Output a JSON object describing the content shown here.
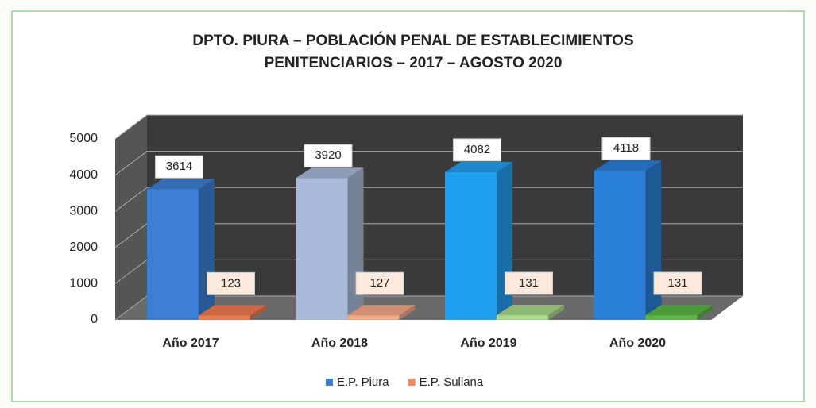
{
  "chart_data": {
    "type": "bar3d",
    "title": [
      "DPTO. PIURA – POBLACIÓN PENAL DE ESTABLECIMIENTOS",
      "PENITENCIARIOS – 2017 – AGOSTO 2020"
    ],
    "categories": [
      "Año 2017",
      "Año 2018",
      "Año 2019",
      "Año 2020"
    ],
    "series": [
      {
        "name": "E.P. Piura",
        "color": "#3a7fd5",
        "colors": [
          "#3a7fd5",
          "#a9b9d9",
          "#1fa0ee",
          "#2b7fd8"
        ],
        "values": [
          3614,
          3920,
          4082,
          4118
        ]
      },
      {
        "name": "E.P. Sullana",
        "color": "#f08a62",
        "colors": [
          "#ee7a50",
          "#f3a888",
          "#a9d98a",
          "#5cb544"
        ],
        "values": [
          123,
          127,
          131,
          131
        ]
      }
    ],
    "ylim": [
      0,
      5000
    ],
    "yticks": [
      0,
      1000,
      2000,
      3000,
      4000,
      5000
    ],
    "grid": true,
    "legend": "bottom"
  }
}
